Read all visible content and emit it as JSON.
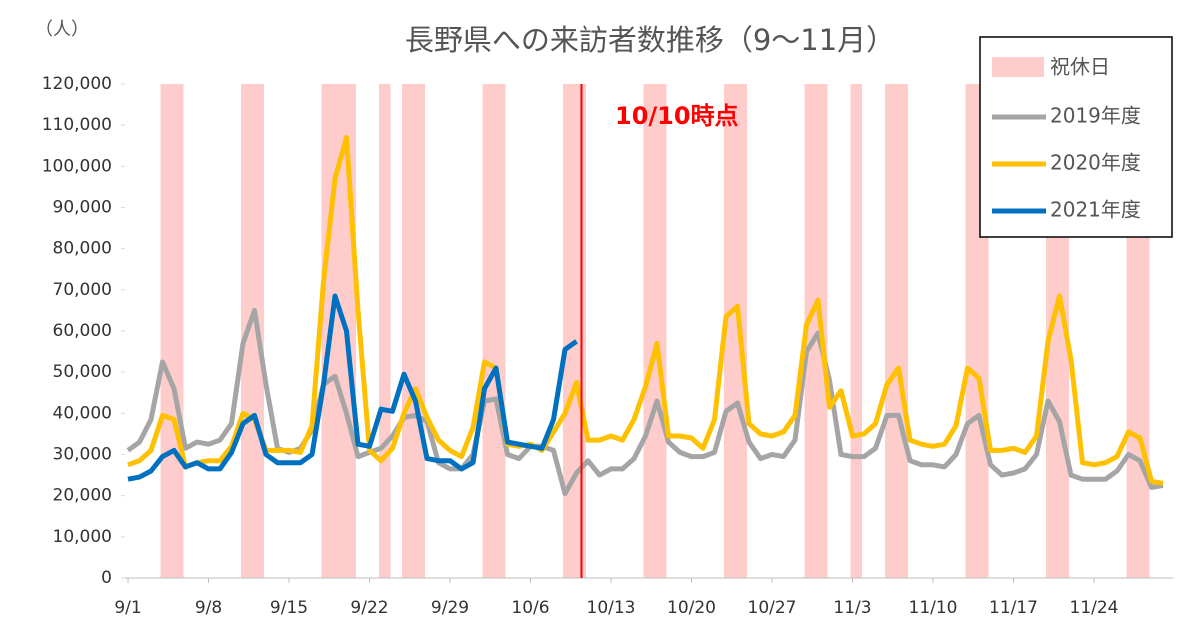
{
  "chart_data": {
    "type": "line",
    "title": "長野県への来訪者数推移（9～11月）",
    "y_label": "（人）",
    "categories": [
      "9/1",
      null,
      null,
      null,
      null,
      null,
      null,
      "9/8",
      null,
      null,
      null,
      null,
      null,
      null,
      "9/15",
      null,
      null,
      null,
      null,
      null,
      null,
      "9/22",
      null,
      null,
      null,
      null,
      null,
      null,
      "9/29",
      null,
      null,
      null,
      null,
      null,
      null,
      "10/6",
      null,
      null,
      null,
      null,
      null,
      null,
      "10/13",
      null,
      null,
      null,
      null,
      null,
      null,
      "10/20",
      null,
      null,
      null,
      null,
      null,
      null,
      "10/27",
      null,
      null,
      null,
      null,
      null,
      null,
      "11/3",
      null,
      null,
      null,
      null,
      null,
      null,
      "11/10",
      null,
      null,
      null,
      null,
      null,
      null,
      "11/17",
      null,
      null,
      null,
      null,
      null,
      null,
      "11/24",
      null,
      null,
      null,
      null,
      null,
      null
    ],
    "series": [
      {
        "name": "2019年度",
        "color": "#a5a5a5",
        "values": [
          31000,
          33000,
          38500,
          52500,
          46000,
          31500,
          33000,
          32500,
          33500,
          37500,
          57000,
          65000,
          47000,
          31500,
          30500,
          31500,
          36000,
          47000,
          49000,
          40000,
          29500,
          30500,
          31500,
          34500,
          39000,
          39500,
          38000,
          28000,
          26500,
          26500,
          30000,
          43000,
          43500,
          30000,
          29000,
          32000,
          32000,
          31000,
          20500,
          25500,
          28500,
          25000,
          26500,
          26500,
          29000,
          34500,
          43000,
          33000,
          30500,
          29500,
          29500,
          30500,
          40500,
          42500,
          33000,
          29000,
          30000,
          29500,
          33500,
          55000,
          59500,
          48000,
          30000,
          29500,
          29500,
          31500,
          39500,
          39500,
          28500,
          27500,
          27500,
          27000,
          30000,
          37500,
          39500,
          27500,
          25000,
          25500,
          26500,
          30000,
          43000,
          38000,
          25000,
          24000,
          24000,
          24000,
          26000,
          30000,
          28500,
          22000,
          22500
        ]
      },
      {
        "name": "2020年度",
        "color": "#ffc000",
        "values": [
          27500,
          28500,
          31000,
          39500,
          38500,
          27000,
          28000,
          28500,
          28500,
          32000,
          40000,
          38500,
          31000,
          31000,
          31000,
          30500,
          37000,
          72000,
          97000,
          107000,
          65000,
          31000,
          28500,
          31500,
          40000,
          46000,
          39000,
          33500,
          31000,
          29500,
          36500,
          52500,
          51000,
          32500,
          32000,
          32500,
          31000,
          35500,
          40000,
          47500,
          33500,
          33500,
          34500,
          33500,
          38500,
          46500,
          57000,
          34500,
          34500,
          34000,
          31500,
          38500,
          63500,
          66000,
          37500,
          35000,
          34500,
          35500,
          39500,
          61500,
          67500,
          41500,
          45500,
          34500,
          35000,
          37500,
          47000,
          51000,
          33500,
          32500,
          32000,
          32500,
          37000,
          51000,
          48500,
          31000,
          31000,
          31500,
          30500,
          34500,
          57500,
          68500,
          53000,
          28000,
          27500,
          28000,
          29500,
          35500,
          34000,
          23500,
          23000
        ]
      },
      {
        "name": "2021年度",
        "color": "#0070c0",
        "values": [
          24000,
          24500,
          26000,
          29500,
          31000,
          27000,
          28000,
          26500,
          26500,
          30500,
          37500,
          39500,
          30000,
          28000,
          28000,
          28000,
          30000,
          47000,
          68500,
          60000,
          32500,
          32000,
          41000,
          40500,
          49500,
          43000,
          29000,
          28500,
          28500,
          26500,
          28000,
          46000,
          51000,
          33000,
          32500,
          32000,
          31500,
          38500,
          55500,
          57500,
          null,
          null,
          null,
          null,
          null,
          null,
          null,
          null,
          null,
          null,
          null,
          null,
          null,
          null,
          null,
          null,
          null,
          null,
          null,
          null,
          null,
          null,
          null,
          null,
          null,
          null,
          null,
          null,
          null,
          null,
          null,
          null,
          null,
          null,
          null,
          null,
          null,
          null,
          null,
          null,
          null,
          null,
          null,
          null,
          null,
          null,
          null,
          null,
          null,
          null,
          null
        ]
      }
    ],
    "holiday_label": "祝休日",
    "holiday_color": "#ffcccc",
    "holidays": [
      3,
      4,
      10,
      11,
      17,
      18,
      19,
      22,
      24,
      25,
      31,
      32,
      38,
      39,
      45,
      46,
      52,
      53,
      59,
      60,
      63,
      66,
      67,
      73,
      74,
      80,
      81,
      87,
      88
    ],
    "marker": {
      "index": 39,
      "label": "10/10時点",
      "color": "#ff0000"
    },
    "ylim": [
      0,
      120000
    ],
    "yticks": [
      0,
      {
        "value": 10000,
        "label": "10,000"
      },
      {
        "value": 20000,
        "label": "20,000"
      },
      {
        "value": 30000,
        "label": "30,000"
      },
      {
        "value": 40000,
        "label": "40,000"
      },
      {
        "value": 50000,
        "label": "50,000"
      },
      {
        "value": 60000,
        "label": "60,000"
      },
      {
        "value": 70000,
        "label": "70,000"
      },
      {
        "value": 80000,
        "label": "80,000"
      },
      {
        "value": 90000,
        "label": "90,000"
      },
      {
        "value": 100000,
        "label": "100,000"
      },
      {
        "value": 110000,
        "label": "110,000"
      },
      {
        "value": 120000,
        "label": "120,000"
      }
    ],
    "grid": false,
    "legend": "top-right"
  }
}
